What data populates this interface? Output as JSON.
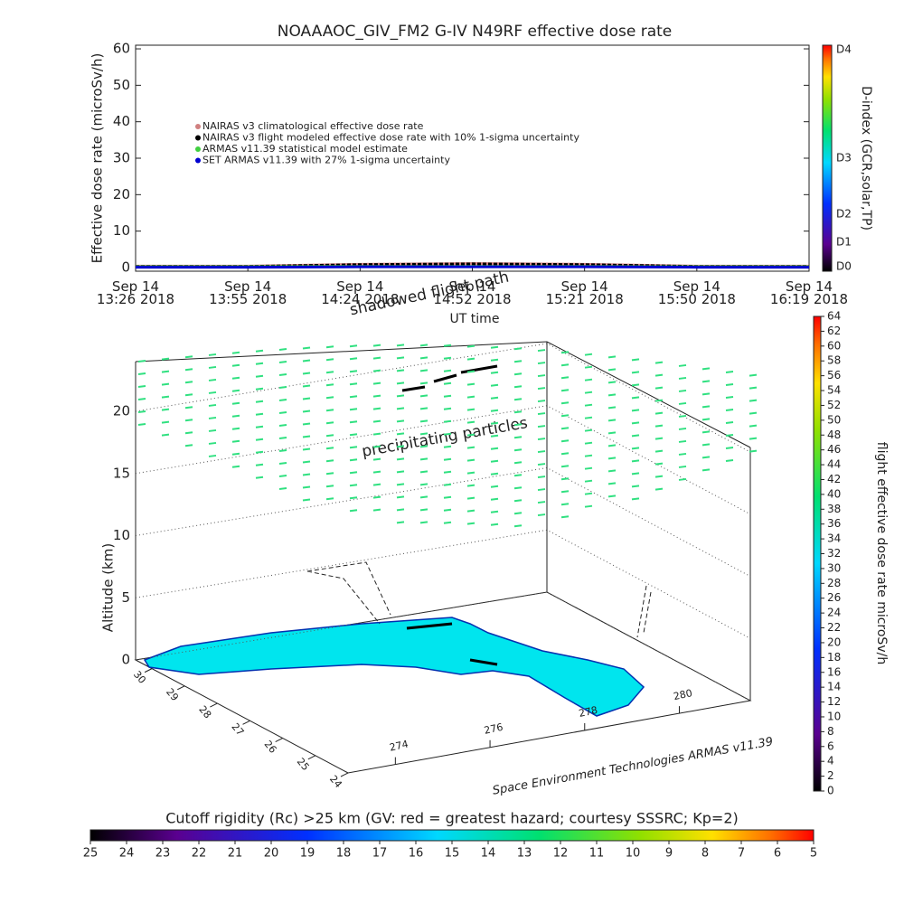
{
  "chart_data": [
    {
      "type": "line",
      "title": "NOAAAOC_GIV_FM2 G-IV   N49RF  effective dose rate",
      "y_label": "Effective dose rate (microSv/h)",
      "x_label": "UT time",
      "categories": [
        "Sep 14\n13:26 2018",
        "Sep 14\n13:55 2018",
        "Sep 14\n14:24 2018",
        "Sep 14\n14:52 2018",
        "Sep 14\n15:21 2018",
        "Sep 14\n15:50 2018",
        "Sep 14\n16:19 2018"
      ],
      "ylim": [
        -1,
        61
      ],
      "yticks": [
        0,
        10,
        20,
        30,
        40,
        50,
        60
      ],
      "series": [
        {
          "name": "NAIRAS v3 climatological effective dose rate",
          "color": "#d08080",
          "values": [
            0.4,
            0.4,
            0.9,
            1.1,
            0.9,
            0.4,
            0.4
          ]
        },
        {
          "name": "NAIRAS v3 flight modeled effective dose rate with 10% 1-sigma uncertainty",
          "color": "#000000",
          "values": [
            0.3,
            0.3,
            0.8,
            1.0,
            0.8,
            0.3,
            0.3
          ]
        },
        {
          "name": "ARMAS v11.39 statistical model estimate",
          "color": "#40d040",
          "values": [
            0.2,
            0.2,
            0.3,
            0.3,
            0.3,
            0.2,
            0.2
          ]
        },
        {
          "name": "SET ARMAS v11.39 with 27% 1-sigma uncertainty",
          "color": "#0000d0",
          "values": [
            0.1,
            0.1,
            0.2,
            0.2,
            0.2,
            0.1,
            0.1
          ]
        }
      ],
      "dindex": {
        "label": "D-index (GCR,solar,TP)",
        "ticks": [
          "D4",
          "D3",
          "D2",
          "D1",
          "D0"
        ]
      }
    },
    {
      "type": "scatter3d",
      "z_label": "Altitude (km)",
      "zlim": [
        0,
        24
      ],
      "zticks": [
        0,
        5,
        10,
        15,
        20
      ],
      "latlim": [
        24,
        30.5
      ],
      "latticks": [
        30,
        29,
        28,
        27,
        26,
        25,
        24
      ],
      "lonlim": [
        273,
        281.5
      ],
      "lonticks": [
        274,
        276,
        278,
        280
      ],
      "annotations": [
        "shadowed flight path",
        "precipitating particles"
      ],
      "footer": "Space Environment Technologies ARMAS v11.39",
      "colorbar": {
        "label": "flight effective dose rate microSv/h",
        "lim": [
          0,
          64
        ],
        "ticks": [
          0,
          2,
          4,
          6,
          8,
          10,
          12,
          14,
          16,
          18,
          20,
          22,
          24,
          26,
          28,
          30,
          32,
          34,
          36,
          38,
          40,
          42,
          44,
          46,
          48,
          50,
          52,
          54,
          56,
          58,
          60,
          62,
          64
        ]
      }
    },
    {
      "type": "colorbar",
      "title": "Cutoff rigidity (Rc) >25 km (GV: red = greatest hazard; courtesy SSSRC; Kp=2)",
      "xlim": [
        25,
        5
      ],
      "xticks": [
        25,
        24,
        23,
        22,
        21,
        20,
        19,
        18,
        17,
        16,
        15,
        14,
        13,
        12,
        11,
        10,
        9,
        8,
        7,
        6,
        5
      ]
    }
  ]
}
